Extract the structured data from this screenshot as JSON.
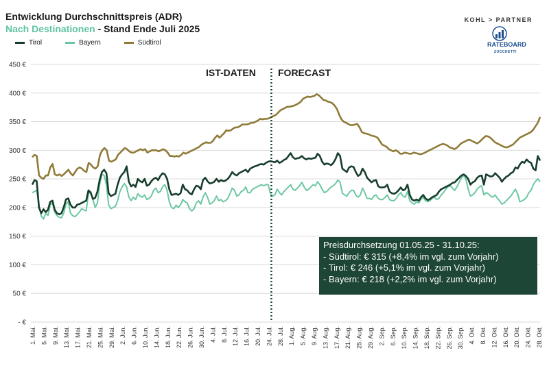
{
  "header": {
    "title": "Entwicklung Durchschnittspreis (ADR)",
    "subtitle_dest": "Nach Destinationen",
    "subtitle_rest": " - Stand Ende Juli 2025"
  },
  "brand": {
    "partner": "KOHL > PARTNER",
    "rateboard": "RATEBOARD",
    "rateboard_sub": "ZUCCHETTI"
  },
  "phases": {
    "actual": "IST-DATEN",
    "forecast": "FORECAST"
  },
  "infobox": {
    "heading": "Preisdurchsetzung 01.05.25 - 31.10.25:",
    "lines": [
      "- Südtirol:  € 315 (+8,4% im vgl. zum Vorjahr)",
      "- Tirol:  € 246  (+5,1% im vgl. zum Vorjahr)",
      "- Bayern: € 218  (+2,2% im vgl. zum Vorjahr)"
    ]
  },
  "chart_data": {
    "type": "line",
    "title": "Entwicklung Durchschnittspreis (ADR)",
    "y_tick_labels": [
      "- €",
      "50 €",
      "100 €",
      "150 €",
      "200 €",
      "250 €",
      "300 €",
      "350 €",
      "400 €",
      "450 €"
    ],
    "ylim": [
      0,
      450
    ],
    "grid": true,
    "legend_position": "top-left",
    "divider_date": "24. Jul.",
    "x_tick_labels": [
      "1. Mai.",
      "5. Mai.",
      "9. Mai.",
      "13. Mai.",
      "17. Mai.",
      "21. Mai.",
      "25. Mai.",
      "29. Mai.",
      "2. Jun.",
      "6. Jun.",
      "10. Jun.",
      "14. Jun.",
      "18. Jun.",
      "22. Jun.",
      "26. Jun.",
      "30. Jun.",
      "4. Jul.",
      "8. Jul.",
      "12. Jul.",
      "16. Jul.",
      "20. Jul.",
      "24. Jul.",
      "28. Jul.",
      "1. Aug.",
      "5. Aug.",
      "9. Aug.",
      "13. Aug.",
      "17. Aug.",
      "21. Aug.",
      "25. Aug.",
      "29. Aug.",
      "2. Sep.",
      "6. Sep.",
      "10. Sep.",
      "14. Sep.",
      "18. Sep.",
      "22. Sep.",
      "26. Sep.",
      "30. Sep.",
      "4. Okt.",
      "8. Okt.",
      "12. Okt.",
      "16. Okt.",
      "20. Okt.",
      "24. Okt.",
      "28. Okt."
    ],
    "series": [
      {
        "name": "Tirol",
        "color": "#173d2c",
        "values": [
          240,
          248,
          246,
          200,
          190,
          197,
          192,
          196,
          210,
          212,
          196,
          190,
          188,
          190,
          200,
          214,
          216,
          205,
          200,
          200,
          205,
          206,
          208,
          210,
          212,
          230,
          226,
          215,
          217,
          228,
          248,
          262,
          266,
          260,
          225,
          220,
          222,
          224,
          240,
          252,
          258,
          262,
          272,
          245,
          237,
          240,
          236,
          250,
          246,
          244,
          250,
          238,
          240,
          246,
          250,
          252,
          248,
          255,
          260,
          258,
          250,
          232,
          222,
          223,
          224,
          222,
          225,
          240,
          232,
          230,
          225,
          223,
          232,
          238,
          237,
          232,
          248,
          252,
          246,
          242,
          243,
          245,
          250,
          245,
          248,
          246,
          247,
          250,
          255,
          262,
          258,
          256,
          260,
          262,
          264,
          266,
          262,
          268,
          270,
          272,
          273,
          275,
          276,
          275,
          278,
          280,
          281,
          280,
          279,
          282,
          278,
          280,
          283,
          285,
          290,
          295,
          288,
          285,
          286,
          287,
          290,
          286,
          284,
          286,
          285,
          286,
          287,
          294,
          290,
          280,
          275,
          277,
          276,
          274,
          278,
          285,
          295,
          290,
          268,
          265,
          262,
          270,
          272,
          271,
          262,
          255,
          258,
          268,
          262,
          252,
          248,
          244,
          247,
          248,
          237,
          235,
          235,
          236,
          240,
          228,
          225,
          224,
          226,
          230,
          235,
          230,
          232,
          240,
          222,
          214,
          212,
          214,
          212,
          218,
          222,
          216,
          213,
          215,
          218,
          220,
          222,
          228,
          232,
          234,
          236,
          238,
          240,
          243,
          244,
          248,
          252,
          256,
          258,
          255,
          250,
          240,
          244,
          246,
          252,
          255,
          256,
          240,
          258,
          256,
          254,
          255,
          260,
          256,
          252,
          245,
          250,
          254,
          256,
          260,
          262,
          270,
          268,
          275,
          280,
          278,
          284,
          280,
          278,
          268,
          265,
          290,
          282
        ]
      },
      {
        "name": "Bayern",
        "color": "#6dc7a2",
        "values": [
          226,
          228,
          230,
          205,
          185,
          180,
          190,
          186,
          205,
          208,
          192,
          186,
          183,
          182,
          190,
          206,
          210,
          190,
          186,
          184,
          188,
          192,
          198,
          196,
          194,
          224,
          228,
          214,
          200,
          208,
          240,
          258,
          256,
          240,
          205,
          198,
          200,
          202,
          212,
          228,
          236,
          242,
          236,
          218,
          212,
          218,
          214,
          224,
          220,
          218,
          222,
          214,
          216,
          220,
          230,
          234,
          226,
          228,
          236,
          240,
          230,
          210,
          200,
          198,
          204,
          200,
          205,
          214,
          210,
          208,
          198,
          194,
          198,
          208,
          212,
          206,
          218,
          226,
          218,
          206,
          208,
          212,
          220,
          212,
          214,
          210,
          212,
          216,
          224,
          234,
          230,
          220,
          222,
          228,
          230,
          236,
          226,
          226,
          232,
          234,
          236,
          238,
          240,
          238,
          240,
          240,
          224,
          220,
          222,
          232,
          226,
          222,
          228,
          232,
          236,
          240,
          232,
          230,
          234,
          238,
          244,
          236,
          230,
          232,
          236,
          240,
          238,
          245,
          240,
          232,
          226,
          228,
          232,
          236,
          238,
          242,
          248,
          244,
          225,
          222,
          220,
          226,
          230,
          230,
          222,
          218,
          222,
          234,
          226,
          216,
          216,
          214,
          220,
          222,
          216,
          214,
          214,
          218,
          222,
          214,
          212,
          212,
          216,
          222,
          226,
          220,
          218,
          228,
          212,
          208,
          206,
          210,
          208,
          214,
          218,
          212,
          210,
          212,
          216,
          218,
          214,
          216,
          222,
          226,
          232,
          236,
          238,
          234,
          230,
          236,
          244,
          252,
          256,
          250,
          232,
          220,
          222,
          226,
          232,
          236,
          238,
          222,
          226,
          224,
          220,
          218,
          222,
          216,
          212,
          206,
          208,
          212,
          216,
          220,
          226,
          232,
          224,
          210,
          212,
          214,
          218,
          226,
          230,
          240,
          246,
          250,
          245
        ]
      },
      {
        "name": "Südtirol",
        "color": "#8f7a38",
        "values": [
          288,
          292,
          290,
          256,
          252,
          250,
          256,
          256,
          270,
          276,
          258,
          256,
          258,
          255,
          258,
          262,
          266,
          260,
          256,
          262,
          268,
          270,
          268,
          264,
          262,
          278,
          275,
          270,
          268,
          272,
          292,
          300,
          304,
          300,
          282,
          280,
          282,
          284,
          292,
          296,
          300,
          304,
          302,
          298,
          296,
          296,
          298,
          300,
          302,
          300,
          302,
          296,
          298,
          300,
          300,
          300,
          298,
          300,
          302,
          300,
          296,
          290,
          290,
          289,
          290,
          289,
          292,
          296,
          294,
          296,
          298,
          300,
          302,
          304,
          306,
          310,
          312,
          314,
          313,
          313,
          316,
          322,
          326,
          322,
          326,
          330,
          335,
          334,
          335,
          338,
          340,
          340,
          342,
          345,
          345,
          345,
          346,
          348,
          348,
          350,
          352,
          355,
          354,
          355,
          355,
          356,
          358,
          360,
          362,
          366,
          370,
          372,
          374,
          376,
          376,
          377,
          378,
          380,
          382,
          385,
          390,
          392,
          394,
          393,
          394,
          395,
          398,
          396,
          392,
          388,
          387,
          385,
          384,
          382,
          378,
          372,
          362,
          354,
          350,
          348,
          346,
          344,
          344,
          345,
          346,
          340,
          332,
          330,
          329,
          328,
          326,
          325,
          324,
          322,
          316,
          310,
          308,
          306,
          302,
          300,
          298,
          300,
          298,
          294,
          294,
          296,
          295,
          294,
          294,
          296,
          295,
          294,
          293,
          294,
          296,
          298,
          300,
          302,
          304,
          306,
          308,
          310,
          311,
          310,
          308,
          305,
          304,
          302,
          304,
          308,
          312,
          314,
          316,
          318,
          318,
          316,
          314,
          312,
          314,
          318,
          322,
          325,
          324,
          322,
          318,
          314,
          312,
          310,
          308,
          306,
          305,
          306,
          308,
          310,
          314,
          318,
          322,
          324,
          326,
          328,
          330,
          332,
          336,
          342,
          348,
          358
        ]
      }
    ]
  }
}
